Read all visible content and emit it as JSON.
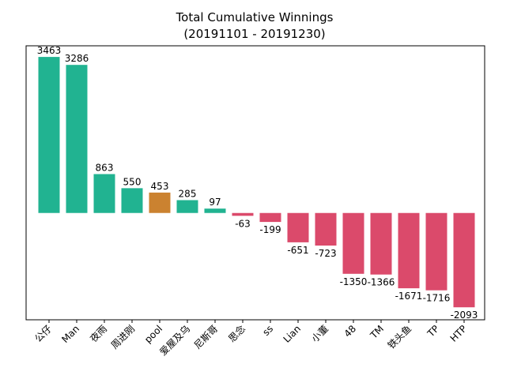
{
  "chart_data": {
    "type": "bar",
    "title": "Total Cumulative Winnings",
    "subtitle": "(20191101 - 20191230)",
    "xlabel": "",
    "ylabel": "",
    "categories": [
      "公仔",
      "Man",
      "夜雨",
      "周进刚",
      "pool",
      "爱屋及乌",
      "尼斯哥",
      "思念",
      "ss",
      "Lian",
      "小董",
      "48",
      "TM",
      "铁头鱼",
      "TP",
      "HTP"
    ],
    "values": [
      3463,
      3286,
      863,
      550,
      453,
      285,
      97,
      -63,
      -199,
      -651,
      -723,
      -1350,
      -1366,
      -1671,
      -1716,
      -2093
    ],
    "ylim": [
      -2370,
      3710
    ],
    "grid": false,
    "highlight_category": "pool",
    "colors": {
      "positive": "#21b391",
      "negative": "#db4a6b",
      "highlight": "#cb8230"
    }
  }
}
